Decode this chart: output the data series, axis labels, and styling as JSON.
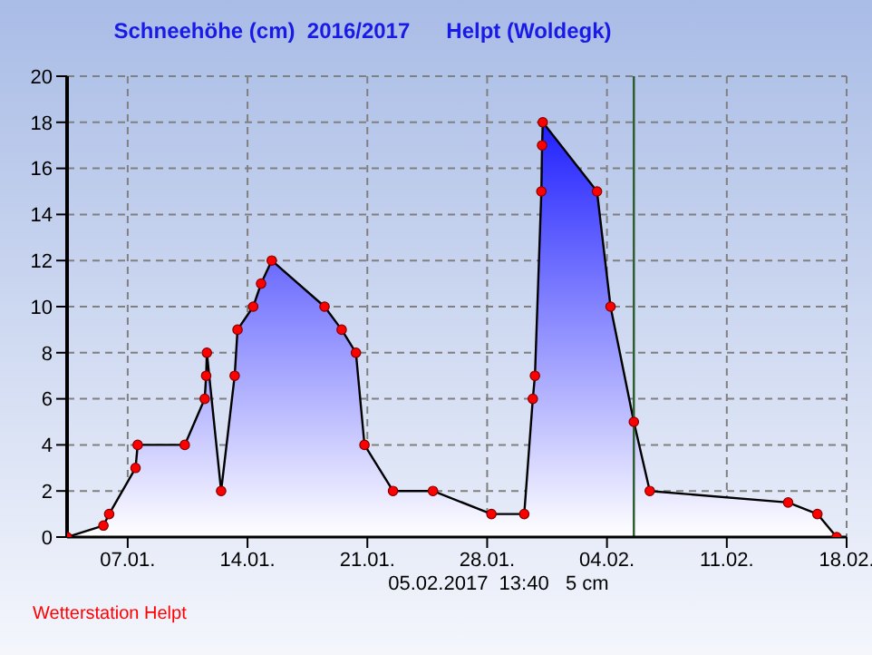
{
  "chart_data": {
    "type": "area",
    "title": "Schneehöhe (cm)  2016/2017      Helpt (Woldegk)",
    "x": [
      "2017-01-03T11:00",
      "2017-01-05T14:00",
      "2017-01-05T22:00",
      "2017-01-07T11:00",
      "2017-01-07T14:00",
      "2017-01-10T08:00",
      "2017-01-11T12:00",
      "2017-01-11T14:00",
      "2017-01-11T15:00",
      "2017-01-12T11:00",
      "2017-01-13T06:00",
      "2017-01-13T10:00",
      "2017-01-14T08:00",
      "2017-01-14T19:00",
      "2017-01-15T10:00",
      "2017-01-18T12:00",
      "2017-01-19T12:00",
      "2017-01-20T08:00",
      "2017-01-20T20:00",
      "2017-01-22T12:00",
      "2017-01-24T20:00",
      "2017-01-28T06:00",
      "2017-01-30T04:00",
      "2017-01-30T16:00",
      "2017-01-30T19:00",
      "2017-01-31T04:00",
      "2017-01-31T05:00",
      "2017-01-31T06:00",
      "2017-02-03T10:00",
      "2017-02-04T05:00",
      "2017-02-05T13:40",
      "2017-02-06T12:00",
      "2017-02-14T14:00",
      "2017-02-16T07:00",
      "2017-02-17T10:00"
    ],
    "series": [
      {
        "color": "#2020ff",
        "values": [
          0,
          0.5,
          1,
          3,
          4,
          4,
          6,
          7,
          8,
          2,
          7,
          9,
          10,
          11,
          12,
          10,
          9,
          8,
          4,
          2,
          2,
          1,
          1,
          6,
          7,
          15,
          17,
          18,
          15,
          10,
          5,
          2,
          1.5,
          1,
          0
        ]
      }
    ],
    "xlim": [
      "2017-01-03T11:00",
      "2017-02-18T00:00"
    ],
    "xticks": [
      {
        "value": "2017-01-07",
        "label": "07.01."
      },
      {
        "value": "2017-01-14",
        "label": "14.01."
      },
      {
        "value": "2017-01-21",
        "label": "21.01."
      },
      {
        "value": "2017-01-28",
        "label": "28.01."
      },
      {
        "value": "2017-02-04",
        "label": "04.02."
      },
      {
        "value": "2017-02-11",
        "label": "11.02."
      },
      {
        "value": "2017-02-18",
        "label": "18.02."
      }
    ],
    "ylim": [
      0,
      20
    ],
    "yticks": [
      0,
      2,
      4,
      6,
      8,
      10,
      12,
      14,
      16,
      18,
      20
    ],
    "grid": true,
    "marker": "circle",
    "line_style": "solid",
    "ref_lines": [
      {
        "axis": "x",
        "value": "2017-02-05T13:40",
        "color": "#2a5a2a"
      }
    ],
    "annotations": [
      "05.02.2017  13:40   5 cm",
      "Wetterstation Helpt"
    ]
  }
}
